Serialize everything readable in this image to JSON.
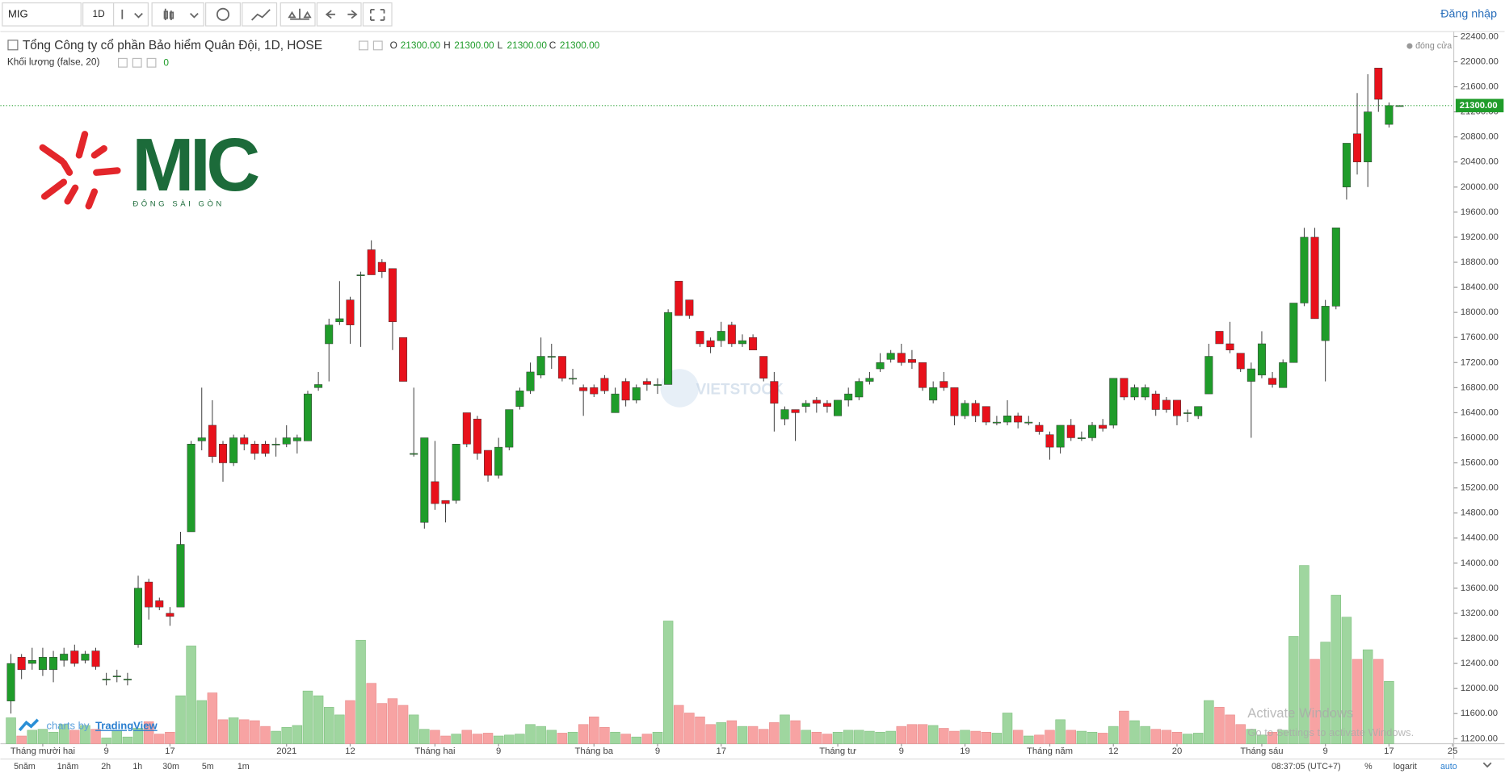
{
  "ui": {
    "toolbar": {
      "symbol": "MIG",
      "interval": "1D",
      "login": "Đăng nhập"
    },
    "legend": {
      "title": "Tổng Công ty cổ phần Bảo hiểm Quân Đội, 1D, HOSE",
      "o_key": "O",
      "o": "21300.00",
      "h_key": "H",
      "h": "21300.00",
      "l_key": "L",
      "l": "21300.00",
      "c_key": "C",
      "c": "21300.00",
      "volume_title": "Khối lượng (false, 20)",
      "volume_value": "0",
      "status": "đóng cửa"
    },
    "watermark": {
      "logo": "MIC",
      "logo_sub": "ĐÔNG SÀI GÒN",
      "site": "VIETSTOCK",
      "credit_prefix": "charts by",
      "credit": "TradingView",
      "activate": "Activate Windows",
      "activate_sub": "Go to Settings to activate Windows."
    },
    "bottom": {
      "ranges": [
        "5năm",
        "1năm",
        "2h",
        "1h",
        "30m",
        "5m",
        "1m"
      ],
      "time": "08:37:05 (UTC+7)",
      "percent": "%",
      "log": "logarit",
      "auto": "auto"
    }
  },
  "chart_data": {
    "type": "candlestick",
    "open": [
      11800,
      12500,
      12400,
      12300,
      12300,
      12450,
      12600,
      12450,
      12600,
      12150,
      12200,
      12150,
      12700,
      13700,
      13400,
      13200,
      13300,
      14500,
      15950,
      16200,
      15900,
      15600,
      16000,
      15900,
      15900,
      15900,
      15900,
      15950,
      15950,
      16800,
      17500,
      17850,
      18200,
      18600,
      19000,
      18800,
      18700,
      17600,
      15750,
      14650,
      15300,
      15000,
      15000,
      16400,
      16300,
      15800,
      15400,
      15850,
      16500,
      16750,
      17000,
      17300,
      17300,
      16950,
      16800,
      16800,
      16950,
      16400,
      16900,
      16600,
      16900,
      16850,
      16850,
      18500,
      18200,
      17700,
      17550,
      17550,
      17800,
      17500,
      17600,
      17300,
      16900,
      16300,
      16450,
      16500,
      16600,
      16550,
      16350,
      16600,
      16650,
      16900,
      17100,
      17250,
      17350,
      17250,
      17200,
      16600,
      16900,
      16800,
      16350,
      16550,
      16500,
      16250,
      16250,
      16350,
      16250,
      16200,
      16050,
      15850,
      16200,
      16000,
      16000,
      16200,
      16200,
      16950,
      16650,
      16650,
      16700,
      16600,
      16600,
      16400,
      16350,
      16700,
      17700,
      17500,
      17350,
      16900,
      17000,
      16950,
      16800,
      17200,
      18150,
      19200,
      17550,
      18100,
      20000,
      20850,
      20400,
      21900,
      21000,
      21300
    ],
    "high": [
      12550,
      12550,
      12650,
      12650,
      12600,
      12650,
      12700,
      12600,
      12650,
      12250,
      12300,
      12250,
      13800,
      13750,
      13450,
      13300,
      14500,
      15950,
      16800,
      16600,
      15950,
      16050,
      16050,
      15950,
      15950,
      16000,
      16200,
      16050,
      16750,
      17050,
      17900,
      18500,
      18250,
      18650,
      19150,
      18850,
      18700,
      17600,
      16800,
      16000,
      15950,
      15000,
      15900,
      16400,
      16350,
      15800,
      16000,
      16450,
      16800,
      17200,
      17600,
      17500,
      17300,
      17100,
      16850,
      16850,
      17000,
      16800,
      16950,
      16850,
      16950,
      16950,
      18050,
      18500,
      18200,
      17700,
      17600,
      17850,
      17850,
      17650,
      17650,
      17300,
      17050,
      16500,
      16450,
      16600,
      16650,
      16600,
      16600,
      16800,
      16950,
      17050,
      17350,
      17400,
      17500,
      17400,
      17200,
      16900,
      17050,
      16800,
      16600,
      16600,
      16500,
      16350,
      16600,
      16400,
      16350,
      16250,
      16100,
      16200,
      16300,
      16100,
      16250,
      16300,
      16950,
      16950,
      16850,
      16850,
      16750,
      16650,
      16600,
      16450,
      16500,
      17500,
      17700,
      17850,
      17350,
      17200,
      17700,
      17050,
      17250,
      18150,
      19350,
      19350,
      18200,
      19350,
      20700,
      21500,
      21800,
      21900,
      21350,
      21300
    ],
    "low": [
      11600,
      12150,
      12300,
      12200,
      12100,
      12350,
      12350,
      12400,
      12300,
      12050,
      12100,
      12050,
      12650,
      13100,
      13250,
      13000,
      13300,
      14500,
      15800,
      15600,
      15300,
      15550,
      15800,
      15650,
      15700,
      15700,
      15850,
      15750,
      15950,
      16750,
      16900,
      17800,
      17500,
      17450,
      18600,
      18550,
      17400,
      16900,
      15700,
      14550,
      14850,
      14650,
      14950,
      15850,
      15650,
      15300,
      15350,
      15800,
      16450,
      16700,
      16950,
      17100,
      16900,
      16850,
      16350,
      16650,
      16700,
      16400,
      16500,
      16550,
      16750,
      16700,
      16850,
      17950,
      17900,
      17450,
      17350,
      17450,
      17450,
      17450,
      17400,
      16900,
      16100,
      16200,
      15950,
      16400,
      16400,
      16400,
      16350,
      16500,
      16600,
      16850,
      17050,
      17200,
      17150,
      17100,
      16750,
      16550,
      16750,
      16200,
      16300,
      16250,
      16200,
      16200,
      16200,
      16150,
      16200,
      16050,
      15650,
      15750,
      15950,
      15950,
      15950,
      16100,
      16150,
      16600,
      16600,
      16600,
      16350,
      16400,
      16200,
      16250,
      16300,
      16700,
      17500,
      17350,
      17050,
      16000,
      16950,
      16800,
      16800,
      17200,
      18100,
      17900,
      16900,
      18050,
      19800,
      20200,
      20000,
      21200,
      20950,
      21300
    ],
    "close": [
      12400,
      12300,
      12450,
      12500,
      12500,
      12550,
      12400,
      12550,
      12350,
      12150,
      12200,
      12150,
      13600,
      13300,
      13300,
      13150,
      14300,
      15900,
      16000,
      15700,
      15600,
      16000,
      15900,
      15750,
      15750,
      15900,
      16000,
      16000,
      16700,
      16850,
      17800,
      17900,
      17800,
      18600,
      18600,
      18650,
      17850,
      16900,
      15750,
      16000,
      14950,
      14950,
      15900,
      15900,
      15750,
      15400,
      15850,
      16450,
      16750,
      17050,
      17300,
      17300,
      16950,
      16950,
      16750,
      16700,
      16750,
      16700,
      16600,
      16800,
      16850,
      16850,
      18000,
      17950,
      17950,
      17500,
      17450,
      17700,
      17500,
      17550,
      17400,
      16950,
      16550,
      16450,
      16400,
      16550,
      16550,
      16500,
      16600,
      16700,
      16900,
      16950,
      17200,
      17350,
      17200,
      17200,
      16800,
      16800,
      16800,
      16350,
      16550,
      16350,
      16250,
      16250,
      16350,
      16250,
      16250,
      16100,
      15850,
      16200,
      16000,
      16000,
      16200,
      16150,
      16950,
      16650,
      16800,
      16800,
      16450,
      16450,
      16350,
      16400,
      16500,
      17300,
      17500,
      17400,
      17100,
      17100,
      17500,
      16850,
      17200,
      18150,
      19200,
      17900,
      18100,
      19350,
      20700,
      20400,
      21200,
      21400,
      21300,
      21300
    ],
    "volume": [
      27,
      8,
      14,
      15,
      12,
      20,
      14,
      19,
      15,
      6,
      14,
      7,
      16,
      23,
      10,
      12,
      50,
      102,
      45,
      53,
      25,
      27,
      25,
      24,
      18,
      13,
      17,
      19,
      55,
      50,
      38,
      30,
      45,
      108,
      63,
      42,
      47,
      40,
      30,
      15,
      14,
      8,
      10,
      14,
      10,
      11,
      8,
      9,
      10,
      20,
      18,
      14,
      11,
      12,
      20,
      28,
      17,
      12,
      10,
      7,
      10,
      12,
      128,
      40,
      32,
      28,
      20,
      22,
      24,
      18,
      18,
      15,
      22,
      30,
      24,
      14,
      12,
      10,
      12,
      14,
      14,
      13,
      12,
      13,
      18,
      20,
      20,
      19,
      16,
      13,
      14,
      13,
      12,
      11,
      32,
      14,
      8,
      9,
      14,
      25,
      14,
      13,
      12,
      11,
      18,
      34,
      24,
      18,
      15,
      14,
      12,
      10,
      11,
      45,
      38,
      30,
      20,
      15,
      9,
      12,
      14,
      112,
      186,
      88,
      106,
      155,
      132,
      88,
      98,
      88,
      65,
      0
    ],
    "up_color": "#1f9c2a",
    "down_color": "#e8111b",
    "volume_up_color": "#9fd69f",
    "volume_down_color": "#f7a3a3",
    "ylim": [
      11120,
      22480
    ],
    "yticks": [
      {
        "value": 11200,
        "label": "11200.00"
      },
      {
        "value": 11600,
        "label": "11600.00"
      },
      {
        "value": 12000,
        "label": "12000.00"
      },
      {
        "value": 12400,
        "label": "12400.00"
      },
      {
        "value": 12800,
        "label": "12800.00"
      },
      {
        "value": 13200,
        "label": "13200.00"
      },
      {
        "value": 13600,
        "label": "13600.00"
      },
      {
        "value": 14000,
        "label": "14000.00"
      },
      {
        "value": 14400,
        "label": "14400.00"
      },
      {
        "value": 14800,
        "label": "14800.00"
      },
      {
        "value": 15200,
        "label": "15200.00"
      },
      {
        "value": 15600,
        "label": "15600.00"
      },
      {
        "value": 16000,
        "label": "16000.00"
      },
      {
        "value": 16400,
        "label": "16400.00"
      },
      {
        "value": 16800,
        "label": "16800.00"
      },
      {
        "value": 17200,
        "label": "17200.00"
      },
      {
        "value": 17600,
        "label": "17600.00"
      },
      {
        "value": 18000,
        "label": "18000.00"
      },
      {
        "value": 18400,
        "label": "18400.00"
      },
      {
        "value": 18800,
        "label": "18800.00"
      },
      {
        "value": 19200,
        "label": "19200.00"
      },
      {
        "value": 19600,
        "label": "19600.00"
      },
      {
        "value": 20000,
        "label": "20000.00"
      },
      {
        "value": 20400,
        "label": "20400.00"
      },
      {
        "value": 20800,
        "label": "20800.00"
      },
      {
        "value": 21200,
        "label": "21200.00"
      },
      {
        "value": 21600,
        "label": "21600.00"
      },
      {
        "value": 22000,
        "label": "22000.00"
      },
      {
        "value": 22400,
        "label": "22400.00"
      }
    ],
    "xticks": [
      {
        "value": 3,
        "label": "Tháng mười hai"
      },
      {
        "value": 9,
        "label": "9"
      },
      {
        "value": 15,
        "label": "17"
      },
      {
        "value": 26,
        "label": "2021"
      },
      {
        "value": 32,
        "label": "12"
      },
      {
        "value": 40,
        "label": "Tháng hai"
      },
      {
        "value": 46,
        "label": "9"
      },
      {
        "value": 55,
        "label": "Tháng ba"
      },
      {
        "value": 61,
        "label": "9"
      },
      {
        "value": 67,
        "label": "17"
      },
      {
        "value": 78,
        "label": "Tháng tư"
      },
      {
        "value": 84,
        "label": "9"
      },
      {
        "value": 90,
        "label": "19"
      },
      {
        "value": 98,
        "label": "Tháng năm"
      },
      {
        "value": 104,
        "label": "12"
      },
      {
        "value": 110,
        "label": "20"
      },
      {
        "value": 118,
        "label": "Tháng sáu"
      },
      {
        "value": 124,
        "label": "9"
      },
      {
        "value": 130,
        "label": "17"
      },
      {
        "value": 136,
        "label": "25"
      }
    ],
    "last_price": {
      "value": 21300,
      "label": "21300.00"
    },
    "grid": false
  }
}
